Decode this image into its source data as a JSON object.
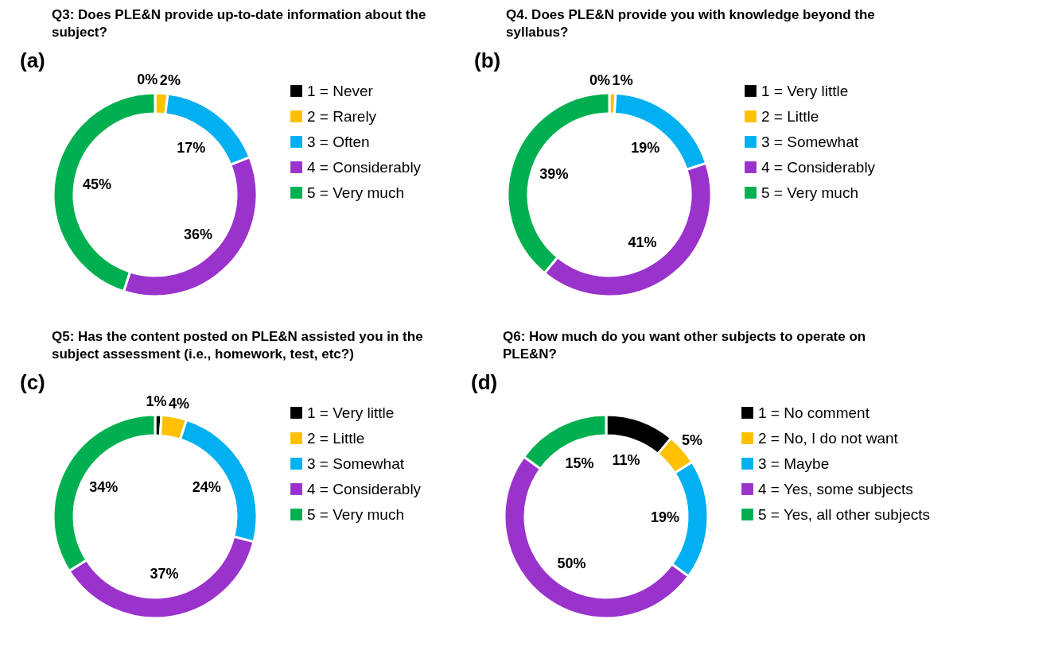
{
  "chart_data": [
    {
      "type": "donut",
      "title": "Q3: Does PLE&N provide up-to-date information about the subject?",
      "annotations": [
        "(a)"
      ],
      "categories": [
        "1 = Never",
        "2 = Rarely",
        "3 = Often",
        "4 = Considerably",
        "5 = Very much"
      ],
      "values": [
        0,
        2,
        17,
        36,
        45
      ],
      "value_labels": [
        "0%",
        "2%",
        "17%",
        "36%",
        "45%"
      ],
      "colors": [
        "#000000",
        "#ffc000",
        "#00b0f0",
        "#9933cc",
        "#00b050"
      ],
      "legend": "right"
    },
    {
      "type": "donut",
      "title": "Q4. Does PLE&N provide you with knowledge beyond the syllabus?",
      "annotations": [
        "(b)"
      ],
      "categories": [
        "1 = Very little",
        "2 = Little",
        "3 = Somewhat",
        "4 = Considerably",
        "5 = Very much"
      ],
      "values": [
        0,
        1,
        19,
        41,
        39
      ],
      "value_labels": [
        "0%",
        "1%",
        "19%",
        "41%",
        "39%"
      ],
      "colors": [
        "#000000",
        "#ffc000",
        "#00b0f0",
        "#9933cc",
        "#00b050"
      ],
      "legend": "right"
    },
    {
      "type": "donut",
      "title": "Q5: Has the content posted on PLE&N assisted you in the subject assessment (i.e., homework, test, etc?)",
      "annotations": [
        "(c)"
      ],
      "categories": [
        "1 = Very little",
        "2 = Little",
        "3 = Somewhat",
        "4 = Considerably",
        "5 = Very much"
      ],
      "values": [
        1,
        4,
        24,
        37,
        34
      ],
      "value_labels": [
        "1%",
        "4%",
        "24%",
        "37%",
        "34%"
      ],
      "colors": [
        "#000000",
        "#ffc000",
        "#00b0f0",
        "#9933cc",
        "#00b050"
      ],
      "legend": "right"
    },
    {
      "type": "donut",
      "title": "Q6: How much do you want other subjects to operate on PLE&N?",
      "annotations": [
        "(d)"
      ],
      "categories": [
        "1 = No comment",
        "2 = No, I do not want",
        "3 = Maybe",
        "4 = Yes, some subjects",
        "5 = Yes, all other subjects"
      ],
      "values": [
        11,
        5,
        19,
        50,
        15
      ],
      "value_labels": [
        "11%",
        "5%",
        "19%",
        "50%",
        "15%"
      ],
      "colors": [
        "#000000",
        "#ffc000",
        "#00b0f0",
        "#9933cc",
        "#00b050"
      ],
      "legend": "right"
    }
  ]
}
